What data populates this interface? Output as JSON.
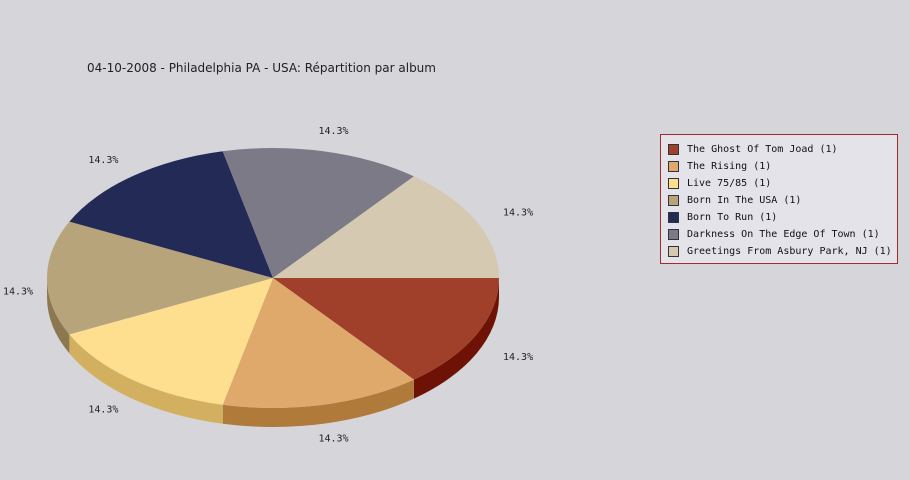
{
  "chart_data": {
    "type": "pie",
    "title": "04-10-2008 - Philadelphia PA - USA:  Répartition par album",
    "slices": [
      {
        "label": "The Ghost Of Tom Joad (1)",
        "value": 1,
        "percent_label": "14.3%",
        "color": "#a0402a",
        "side_color": "#6e1205"
      },
      {
        "label": "The Rising (1)",
        "value": 1,
        "percent_label": "14.3%",
        "color": "#e0a96c",
        "side_color": "#b07a3a"
      },
      {
        "label": "Live 75/85 (1)",
        "value": 1,
        "percent_label": "14.3%",
        "color": "#fedf8f",
        "side_color": "#d2b060"
      },
      {
        "label": "Born In The USA (1)",
        "value": 1,
        "percent_label": "14.3%",
        "color": "#b8a47b",
        "side_color": "#8c7850"
      },
      {
        "label": "Born To Run (1)",
        "value": 1,
        "percent_label": "14.3%",
        "color": "#242a56",
        "side_color": "#121530"
      },
      {
        "label": "Darkness On The Edge Of Town (1)",
        "value": 1,
        "percent_label": "14.3%",
        "color": "#7c7a87",
        "side_color": "#55535e"
      },
      {
        "label": "Greetings From Asbury Park, NJ (1)",
        "value": 1,
        "percent_label": "14.3%",
        "color": "#d5c9b2",
        "side_color": "#a89c86"
      }
    ],
    "legend_position": "right"
  }
}
